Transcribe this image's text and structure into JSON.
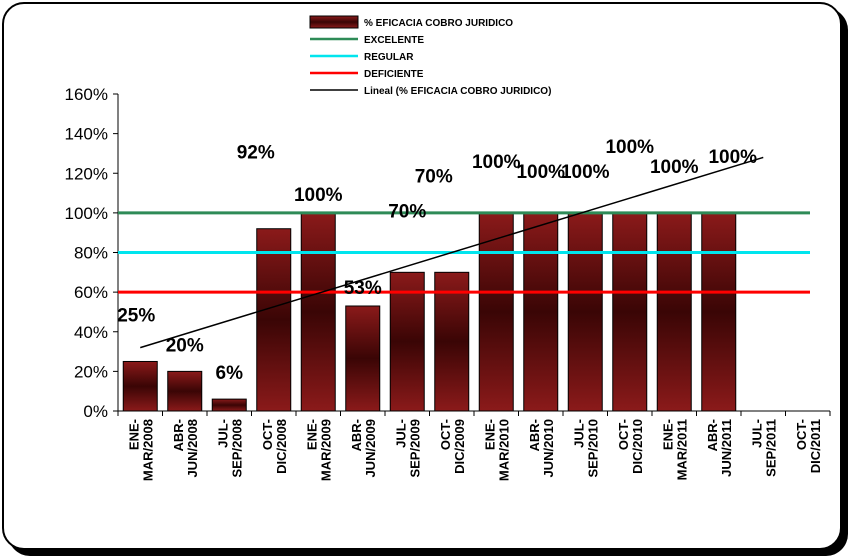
{
  "chart_data": {
    "type": "bar",
    "categories": [
      [
        "ENE-",
        "MAR/2008"
      ],
      [
        "ABR-",
        "JUN/2008"
      ],
      [
        "JUL-",
        "SEP/2008"
      ],
      [
        "OCT-",
        "DIC/2008"
      ],
      [
        "ENE-",
        "MAR/2009"
      ],
      [
        "ABR-",
        "JUN/2009"
      ],
      [
        "JUL-",
        "SEP/2009"
      ],
      [
        "OCT-",
        "DIC/2009"
      ],
      [
        "ENE-",
        "MAR/2010"
      ],
      [
        "ABR-",
        "JUN/2010"
      ],
      [
        "JUL-",
        "SEP/2010"
      ],
      [
        "OCT-",
        "DIC/2010"
      ],
      [
        "ENE-",
        "MAR/2011"
      ],
      [
        "ABR-",
        "JUN/2011"
      ],
      [
        "JUL-",
        "SEP/2011"
      ],
      [
        "OCT-",
        "DIC/2011"
      ]
    ],
    "series": [
      {
        "name": "% EFICACIA COBRO JURIDICO",
        "values": [
          25,
          20,
          6,
          92,
          100,
          53,
          70,
          70,
          100,
          100,
          100,
          100,
          100,
          100,
          null,
          null
        ],
        "labels": [
          "25%",
          "20%",
          "6%",
          "92%",
          "100%",
          "53%",
          "70%",
          "70%",
          "100%",
          "100%",
          "100%",
          "100%",
          "100%",
          "100%",
          null,
          null
        ],
        "color": "#6b0a0a"
      }
    ],
    "reference_lines": [
      {
        "name": "EXCELENTE",
        "value": 100,
        "color": "#2e8b57"
      },
      {
        "name": "REGULAR",
        "value": 80,
        "color": "#00e5ee"
      },
      {
        "name": "DEFICIENTE",
        "value": 60,
        "color": "#ff0000"
      }
    ],
    "trendline": {
      "name": "Lineal (% EFICACIA COBRO JURIDICO)",
      "color": "#000000",
      "start": 32,
      "end": 128
    },
    "yaxis": {
      "min": 0,
      "max": 160,
      "step": 20,
      "tick_labels": [
        "0%",
        "20%",
        "40%",
        "60%",
        "80%",
        "100%",
        "120%",
        "140%",
        "160%"
      ]
    },
    "legend_position": "top"
  }
}
